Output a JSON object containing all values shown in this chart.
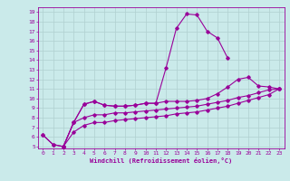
{
  "xlabel": "Windchill (Refroidissement éolien,°C)",
  "xlim": [
    -0.5,
    23.5
  ],
  "ylim": [
    4.8,
    19.5
  ],
  "xticks": [
    0,
    1,
    2,
    3,
    4,
    5,
    6,
    7,
    8,
    9,
    10,
    11,
    12,
    13,
    14,
    15,
    16,
    17,
    18,
    19,
    20,
    21,
    22,
    23
  ],
  "yticks": [
    5,
    6,
    7,
    8,
    9,
    10,
    11,
    12,
    13,
    14,
    15,
    16,
    17,
    18,
    19
  ],
  "line_color": "#990099",
  "bg_color": "#caeaea",
  "grid_color": "#b0d0d0",
  "line1_x": [
    0,
    1,
    2,
    3,
    4,
    5,
    6,
    7,
    8,
    9,
    10,
    11,
    12,
    13,
    14,
    15,
    16,
    17,
    18
  ],
  "line1_y": [
    6.2,
    5.2,
    5.0,
    7.5,
    9.4,
    9.7,
    9.3,
    9.2,
    9.2,
    9.3,
    9.5,
    9.5,
    13.2,
    17.3,
    18.8,
    18.7,
    17.0,
    16.3,
    14.2
  ],
  "line2_x": [
    0,
    1,
    2,
    3,
    4,
    5,
    6,
    7,
    8,
    9,
    10,
    11,
    12,
    13,
    14,
    15,
    16,
    17,
    18,
    19,
    20,
    21,
    22,
    23
  ],
  "line2_y": [
    6.2,
    5.2,
    5.0,
    7.5,
    9.4,
    9.7,
    9.3,
    9.2,
    9.2,
    9.3,
    9.5,
    9.5,
    9.7,
    9.7,
    9.7,
    9.8,
    10.0,
    10.5,
    11.2,
    12.0,
    12.2,
    11.3,
    11.2,
    11.0
  ],
  "line3_x": [
    2,
    3,
    4,
    5,
    6,
    7,
    8,
    9,
    10,
    11,
    12,
    13,
    14,
    15,
    16,
    17,
    18,
    19,
    20,
    21,
    22,
    23
  ],
  "line3_y": [
    5.0,
    7.5,
    8.0,
    8.3,
    8.3,
    8.5,
    8.5,
    8.6,
    8.7,
    8.8,
    8.9,
    9.0,
    9.1,
    9.2,
    9.4,
    9.6,
    9.8,
    10.1,
    10.3,
    10.6,
    10.9,
    11.0
  ],
  "line4_x": [
    2,
    3,
    4,
    5,
    6,
    7,
    8,
    9,
    10,
    11,
    12,
    13,
    14,
    15,
    16,
    17,
    18,
    19,
    20,
    21,
    22,
    23
  ],
  "line4_y": [
    5.0,
    6.5,
    7.2,
    7.5,
    7.5,
    7.7,
    7.8,
    7.9,
    8.0,
    8.1,
    8.2,
    8.4,
    8.5,
    8.6,
    8.8,
    9.0,
    9.2,
    9.5,
    9.8,
    10.1,
    10.4,
    11.0
  ]
}
